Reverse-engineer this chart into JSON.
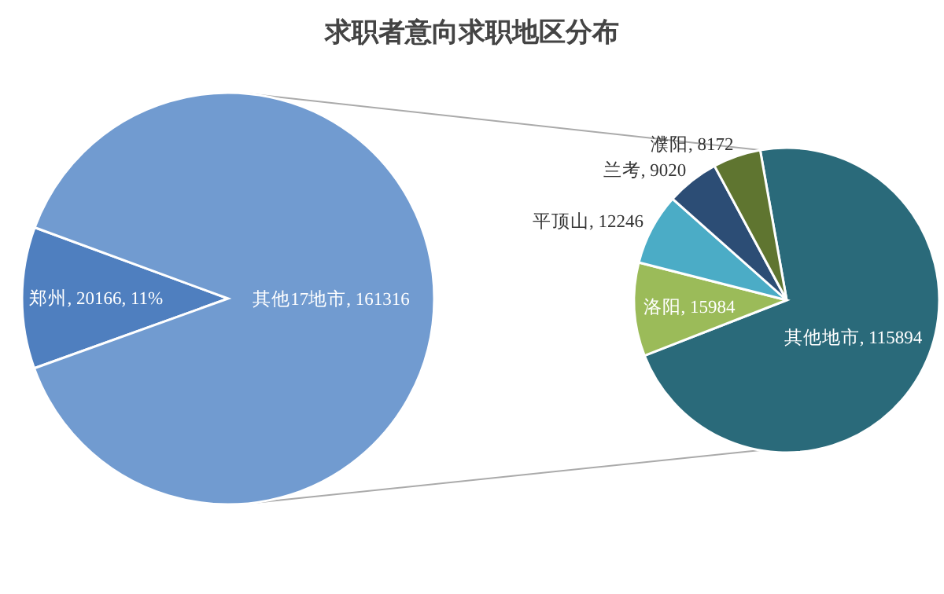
{
  "chart_data": [
    {
      "type": "pie",
      "title": "求职者意向求职地区分布",
      "categories": [
        "郑州",
        "其他17地市"
      ],
      "values": [
        20166,
        161316
      ],
      "colors": [
        "#4f7fbf",
        "#719bd0"
      ],
      "value_labels": [
        "20166, 11%",
        "161316"
      ]
    },
    {
      "type": "pie",
      "categories": [
        "其他地市",
        "洛阳",
        "平顶山",
        "兰考",
        "濮阳"
      ],
      "values": [
        115894,
        15984,
        12246,
        9020,
        8172
      ],
      "colors": [
        "#2a6a7a",
        "#9bbb59",
        "#4bacc6",
        "#2c4d75",
        "#5f7530"
      ],
      "value_labels": [
        "115894",
        "15984",
        "12246",
        "9020",
        "8172"
      ]
    }
  ]
}
